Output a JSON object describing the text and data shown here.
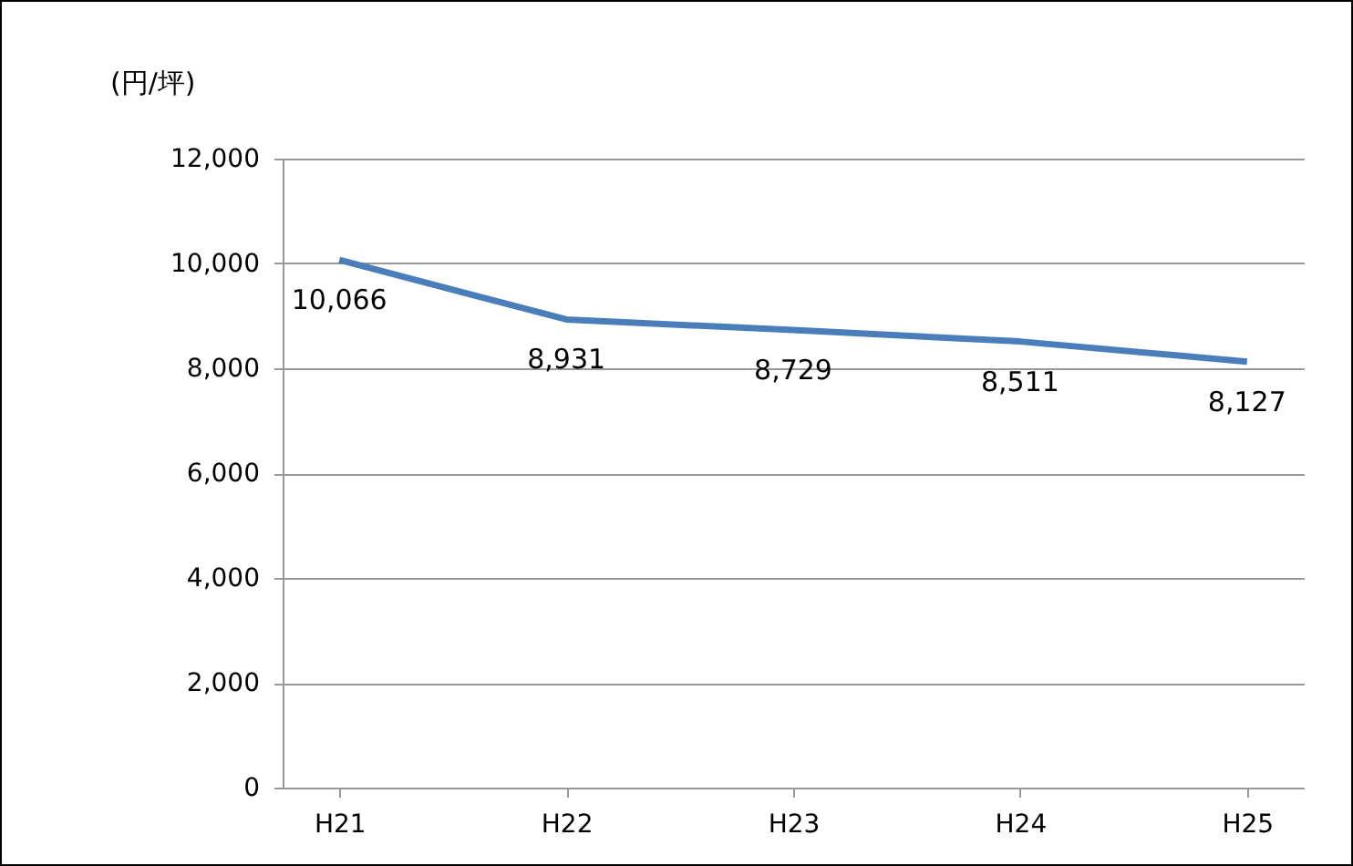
{
  "chart_data": {
    "type": "line",
    "ylabel": "(円/坪)",
    "categories": [
      "H21",
      "H22",
      "H23",
      "H24",
      "H25"
    ],
    "series": [
      {
        "color": "#4a7ebb",
        "values": [
          10066,
          8931,
          8729,
          8511,
          8127
        ],
        "value_labels": [
          "10,066",
          "8,931",
          "8,729",
          "8,511",
          "8,127"
        ]
      }
    ],
    "ylim": [
      0,
      12000
    ],
    "yticks": [
      {
        "value": 0,
        "label": "0"
      },
      {
        "value": 2000,
        "label": "2,000"
      },
      {
        "value": 4000,
        "label": "4,000"
      },
      {
        "value": 6000,
        "label": "6,000"
      },
      {
        "value": 8000,
        "label": "8,000"
      },
      {
        "value": 10000,
        "label": "10,000"
      },
      {
        "value": 12000,
        "label": "12,000"
      }
    ],
    "grid": "y",
    "marker": "none",
    "line_style": "solid"
  }
}
